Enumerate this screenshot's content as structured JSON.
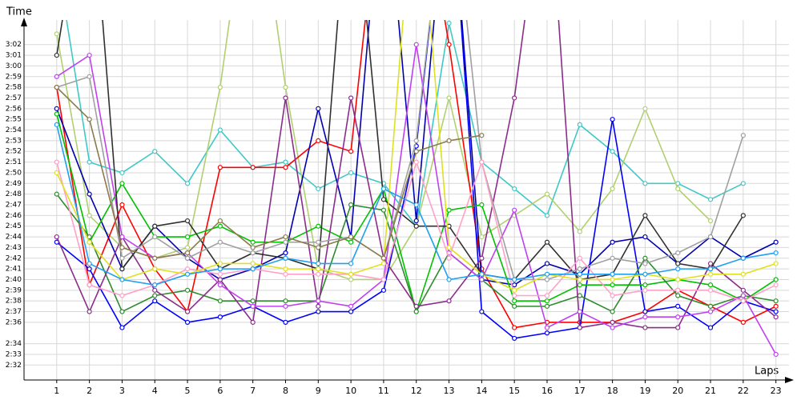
{
  "chart_data": {
    "type": "line",
    "y_label": "Time",
    "x_label": "Laps",
    "x": [
      1,
      2,
      3,
      4,
      5,
      6,
      7,
      8,
      9,
      10,
      11,
      12,
      13,
      14,
      15,
      16,
      17,
      18,
      19,
      20,
      21,
      22,
      23
    ],
    "xlim": [
      0,
      23.4
    ],
    "xticks": [
      1,
      2,
      3,
      4,
      5,
      6,
      7,
      8,
      9,
      10,
      11,
      12,
      13,
      14,
      15,
      16,
      17,
      18,
      19,
      20,
      21,
      22,
      23
    ],
    "ylim": [
      150.6,
      184.3
    ],
    "yticks": [
      {
        "value": 152,
        "label": "2:32"
      },
      {
        "value": 153,
        "label": "2:33"
      },
      {
        "value": 154,
        "label": "2:34"
      },
      {
        "value": 156,
        "label": "2:36"
      },
      {
        "value": 157,
        "label": "2:37"
      },
      {
        "value": 158,
        "label": "2:38"
      },
      {
        "value": 159,
        "label": "2:39"
      },
      {
        "value": 160,
        "label": "2:40"
      },
      {
        "value": 161,
        "label": "2:41"
      },
      {
        "value": 162,
        "label": "2:42"
      },
      {
        "value": 163,
        "label": "2:43"
      },
      {
        "value": 164,
        "label": "2:44"
      },
      {
        "value": 165,
        "label": "2:45"
      },
      {
        "value": 166,
        "label": "2:46"
      },
      {
        "value": 167,
        "label": "2:47"
      },
      {
        "value": 168,
        "label": "2:48"
      },
      {
        "value": 169,
        "label": "2:49"
      },
      {
        "value": 170,
        "label": "2:50"
      },
      {
        "value": 171,
        "label": "2:51"
      },
      {
        "value": 172,
        "label": "2:52"
      },
      {
        "value": 173,
        "label": "2:53"
      },
      {
        "value": 174,
        "label": "2:54"
      },
      {
        "value": 175,
        "label": "2:55"
      },
      {
        "value": 176,
        "label": "2:56"
      },
      {
        "value": 177,
        "label": "2:57"
      },
      {
        "value": 178,
        "label": "2:58"
      },
      {
        "value": 179,
        "label": "2:59"
      },
      {
        "value": 180,
        "label": "3:00"
      },
      {
        "value": 181,
        "label": "3:01"
      },
      {
        "value": 182,
        "label": "3:02"
      }
    ],
    "grid": true,
    "series": [
      {
        "color": "#40c8c8",
        "values": [
          190,
          171,
          170,
          172,
          169,
          174,
          170.5,
          171,
          168.5,
          170,
          169,
          165,
          184,
          171,
          168.5,
          166,
          174.5,
          172,
          169,
          169,
          167.5,
          169,
          null
        ]
      },
      {
        "color": "#b0d070",
        "values": [
          183,
          166,
          163,
          162,
          163,
          178,
          200,
          178,
          161,
          160,
          160,
          165,
          177,
          164,
          166,
          168,
          164.5,
          168.5,
          176,
          168.5,
          165.5,
          null,
          null
        ]
      },
      {
        "color": "#ff0000",
        "values": [
          178,
          159.5,
          167,
          161,
          157,
          170.5,
          170.5,
          170.5,
          173,
          172,
          200,
          200,
          182,
          161,
          155.5,
          156,
          156,
          156,
          157,
          159,
          157.5,
          156,
          157.5
        ]
      },
      {
        "color": "#0000ff",
        "values": [
          163.5,
          161,
          155.5,
          158,
          156,
          156.5,
          157.5,
          156,
          157,
          157,
          159,
          172.5,
          200,
          157,
          154.5,
          155,
          155.5,
          175,
          157,
          157.5,
          155.5,
          158,
          157
        ]
      },
      {
        "color": "#0000b0",
        "values": [
          176,
          168,
          161,
          165,
          162,
          160,
          161,
          162.5,
          176,
          164,
          200,
          165.5,
          200,
          160,
          159.5,
          161.5,
          160.5,
          163.5,
          164,
          161.5,
          164,
          162,
          163.5
        ]
      },
      {
        "color": "#00c000",
        "values": [
          175.5,
          163.5,
          169,
          164,
          164,
          165,
          163.5,
          163.5,
          165,
          163.5,
          168.5,
          157,
          166.5,
          167,
          158,
          158,
          159.5,
          159.5,
          159.5,
          160,
          159.5,
          158,
          160
        ]
      },
      {
        "color": "#2e8b2e",
        "values": [
          168,
          164,
          157,
          158.5,
          159,
          158,
          158,
          158,
          158,
          167,
          166.5,
          157,
          162.5,
          160,
          157.5,
          157.5,
          158.5,
          157,
          162,
          158.5,
          157.5,
          158.5,
          158
        ]
      },
      {
        "color": "#8b2c8b",
        "values": [
          164,
          157,
          164,
          159,
          157,
          160,
          156,
          177,
          157.5,
          177,
          162,
          157.5,
          158,
          162,
          177,
          200,
          155.5,
          156,
          155.5,
          155.5,
          161.5,
          159,
          156.5
        ]
      },
      {
        "color": "#c040f0",
        "values": [
          179,
          181,
          164,
          162,
          162.5,
          159.5,
          157.5,
          157.5,
          158,
          157.5,
          160,
          182,
          162.5,
          160,
          166.5,
          155.5,
          157,
          155.5,
          156.5,
          156.5,
          157,
          158.5,
          153
        ]
      },
      {
        "color": "#303030",
        "values": [
          181,
          200,
          161,
          165,
          165.5,
          161,
          162.5,
          162,
          161,
          200,
          167.5,
          165,
          165,
          160.5,
          160,
          163.5,
          160,
          160.5,
          166,
          161.5,
          161,
          166,
          null
        ]
      },
      {
        "color": "#a0a0a0",
        "values": [
          178,
          179,
          162,
          164,
          162,
          163.5,
          162.5,
          163.5,
          163.5,
          164,
          162,
          173,
          200,
          171,
          160,
          160,
          161,
          162,
          161.5,
          162.5,
          164,
          173.5,
          null
        ]
      },
      {
        "color": "#ffa0c8",
        "values": [
          171,
          159.5,
          158.5,
          159.5,
          161,
          160.5,
          161,
          160.5,
          160.5,
          160.5,
          160,
          171,
          162,
          171,
          158.5,
          158.5,
          162,
          158.5,
          159,
          159,
          159,
          158,
          159.5
        ]
      },
      {
        "color": "#e0e020",
        "values": [
          170,
          163.5,
          160,
          161,
          160.5,
          161.5,
          161.5,
          161,
          161,
          160.5,
          161.5,
          200,
          163,
          160.5,
          159,
          160.5,
          160,
          160,
          160.5,
          160,
          160.5,
          160.5,
          161.5
        ]
      },
      {
        "color": "#20a0f0",
        "values": [
          174.5,
          161.5,
          160,
          159.5,
          160.5,
          161,
          161,
          162,
          161.5,
          161.5,
          168.5,
          167,
          160,
          160.5,
          160,
          160.5,
          160.5,
          160.5,
          160.5,
          161,
          161,
          162,
          162.5
        ]
      },
      {
        "color": "#8b7b4b",
        "values": [
          178,
          175,
          163,
          162,
          162.5,
          165.5,
          163,
          164,
          163,
          164,
          162,
          172,
          173,
          173.5,
          null,
          null,
          null,
          null,
          null,
          null,
          null,
          null,
          null
        ]
      }
    ]
  }
}
